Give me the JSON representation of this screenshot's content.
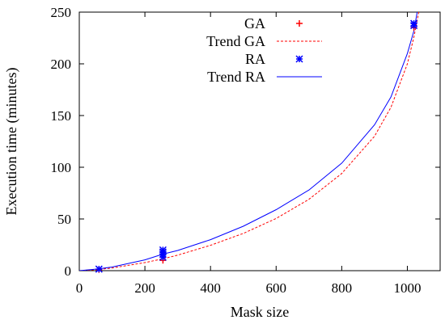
{
  "chart_data": {
    "type": "scatter",
    "xlabel": "Mask size",
    "ylabel": "Execution time (minutes)",
    "xlim": [
      0,
      1100
    ],
    "ylim": [
      0,
      250
    ],
    "xticks": [
      0,
      200,
      400,
      600,
      800,
      1000
    ],
    "yticks": [
      0,
      50,
      100,
      150,
      200,
      250
    ],
    "grid": false,
    "legend_position": "top-center",
    "series": [
      {
        "name": "GA",
        "kind": "points",
        "marker": "plus",
        "color": "#ff0000",
        "points": [
          [
            60,
            1
          ],
          [
            255,
            10
          ],
          [
            1020,
            235
          ]
        ]
      },
      {
        "name": "Trend GA",
        "kind": "trend",
        "dash": true,
        "color": "#ff0000",
        "trend_points": [
          [
            0,
            0
          ],
          [
            60,
            1.2
          ],
          [
            100,
            2.6
          ],
          [
            200,
            7.8
          ],
          [
            255,
            11.5
          ],
          [
            300,
            15
          ],
          [
            400,
            24.5
          ],
          [
            500,
            36
          ],
          [
            600,
            50.5
          ],
          [
            700,
            69
          ],
          [
            800,
            94
          ],
          [
            900,
            130
          ],
          [
            950,
            158
          ],
          [
            1000,
            200
          ],
          [
            1020,
            226
          ],
          [
            1035,
            250
          ]
        ]
      },
      {
        "name": "RA",
        "kind": "points",
        "marker": "star",
        "color": "#0000ff",
        "points": [
          [
            60,
            1.5
          ],
          [
            255,
            13
          ],
          [
            255,
            16
          ],
          [
            255,
            18
          ],
          [
            255,
            20
          ],
          [
            1020,
            237
          ],
          [
            1020,
            239
          ]
        ]
      },
      {
        "name": "Trend RA",
        "kind": "trend",
        "dash": false,
        "color": "#0000ff",
        "trend_points": [
          [
            0,
            0
          ],
          [
            60,
            1.8
          ],
          [
            100,
            3.5
          ],
          [
            200,
            10.5
          ],
          [
            255,
            16
          ],
          [
            300,
            19.5
          ],
          [
            400,
            30
          ],
          [
            500,
            43
          ],
          [
            600,
            59
          ],
          [
            700,
            78
          ],
          [
            800,
            104
          ],
          [
            900,
            141
          ],
          [
            950,
            168
          ],
          [
            1000,
            210
          ],
          [
            1020,
            232
          ],
          [
            1030,
            250
          ]
        ]
      }
    ]
  }
}
